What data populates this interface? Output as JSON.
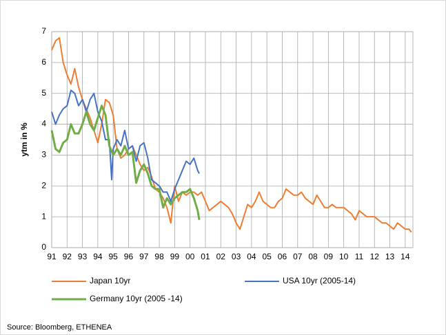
{
  "chart_data": {
    "type": "line",
    "ylabel": "ytm in %",
    "source": "Source: Bloomberg, ETHENEA",
    "xlim": [
      1991,
      2014.5
    ],
    "ylim": [
      0,
      7
    ],
    "yticks": [
      0,
      1,
      2,
      3,
      4,
      5,
      6,
      7
    ],
    "xticks": [
      {
        "value": 1991,
        "label": "91"
      },
      {
        "value": 1992,
        "label": "92"
      },
      {
        "value": 1993,
        "label": "93"
      },
      {
        "value": 1994,
        "label": "94"
      },
      {
        "value": 1995,
        "label": "95"
      },
      {
        "value": 1996,
        "label": "96"
      },
      {
        "value": 1997,
        "label": "97"
      },
      {
        "value": 1998,
        "label": "98"
      },
      {
        "value": 1999,
        "label": "99"
      },
      {
        "value": 2000,
        "label": "00"
      },
      {
        "value": 2001,
        "label": "01"
      },
      {
        "value": 2002,
        "label": "02"
      },
      {
        "value": 2003,
        "label": "03"
      },
      {
        "value": 2004,
        "label": "04"
      },
      {
        "value": 2005,
        "label": "05"
      },
      {
        "value": 2006,
        "label": "06"
      },
      {
        "value": 2007,
        "label": "07"
      },
      {
        "value": 2008,
        "label": "08"
      },
      {
        "value": 2009,
        "label": "09"
      },
      {
        "value": 2010,
        "label": "10"
      },
      {
        "value": 2011,
        "label": "11"
      },
      {
        "value": 2012,
        "label": "12"
      },
      {
        "value": 2013,
        "label": "13"
      },
      {
        "value": 2014,
        "label": "14"
      }
    ],
    "grid": true,
    "series": [
      {
        "name": "Japan 10yr",
        "color": "#ed7d31",
        "x": [
          1991,
          1991.25,
          1991.5,
          1991.75,
          1992,
          1992.25,
          1992.5,
          1992.75,
          1993,
          1993.25,
          1993.5,
          1993.75,
          1994,
          1994.25,
          1994.5,
          1994.75,
          1995,
          1995.25,
          1995.5,
          1995.75,
          1996,
          1996.25,
          1996.5,
          1996.75,
          1997,
          1997.25,
          1997.5,
          1997.75,
          1998,
          1998.25,
          1998.5,
          1998.75,
          1999,
          1999.25,
          1999.5,
          1999.75,
          2000,
          2000.25,
          2000.5,
          2000.75,
          2001,
          2001.25,
          2001.5,
          2001.75,
          2002,
          2002.25,
          2002.5,
          2002.75,
          2003,
          2003.25,
          2003.5,
          2003.75,
          2004,
          2004.25,
          2004.5,
          2004.75,
          2005,
          2005.25,
          2005.5,
          2005.75,
          2006,
          2006.25,
          2006.5,
          2006.75,
          2007,
          2007.25,
          2007.5,
          2007.75,
          2008,
          2008.25,
          2008.5,
          2008.75,
          2009,
          2009.25,
          2009.5,
          2009.75,
          2010,
          2010.25,
          2010.5,
          2010.75,
          2011,
          2011.25,
          2011.5,
          2011.75,
          2012,
          2012.25,
          2012.5,
          2012.75,
          2013,
          2013.25,
          2013.5,
          2013.75,
          2014,
          2014.25,
          2014.4
        ],
        "values": [
          6.4,
          6.7,
          6.8,
          6.0,
          5.6,
          5.3,
          5.8,
          5.2,
          4.8,
          4.5,
          4.2,
          3.8,
          3.4,
          4.0,
          4.8,
          4.7,
          4.3,
          3.2,
          2.9,
          3.0,
          3.2,
          3.3,
          3.0,
          2.7,
          2.5,
          2.6,
          2.3,
          1.9,
          1.8,
          1.6,
          1.3,
          0.8,
          2.0,
          1.5,
          1.8,
          1.7,
          1.8,
          1.8,
          1.7,
          1.8,
          1.5,
          1.2,
          1.3,
          1.4,
          1.5,
          1.4,
          1.3,
          1.1,
          0.8,
          0.6,
          1.0,
          1.4,
          1.3,
          1.5,
          1.8,
          1.5,
          1.4,
          1.3,
          1.3,
          1.5,
          1.6,
          1.9,
          1.8,
          1.7,
          1.7,
          1.8,
          1.6,
          1.5,
          1.4,
          1.7,
          1.5,
          1.3,
          1.3,
          1.4,
          1.3,
          1.3,
          1.3,
          1.2,
          1.1,
          0.9,
          1.2,
          1.1,
          1.0,
          1.0,
          1.0,
          0.9,
          0.8,
          0.8,
          0.7,
          0.6,
          0.8,
          0.7,
          0.6,
          0.6,
          0.5
        ]
      },
      {
        "name": "USA 10yr (2005-14)",
        "color": "#4472c4",
        "x": [
          1991,
          1991.25,
          1991.5,
          1991.75,
          1992,
          1992.25,
          1992.5,
          1992.75,
          1993,
          1993.25,
          1993.5,
          1993.75,
          1994,
          1994.25,
          1994.5,
          1994.75,
          1994.9,
          1995,
          1995.25,
          1995.5,
          1995.75,
          1996,
          1996.25,
          1996.5,
          1996.75,
          1997,
          1997.25,
          1997.5,
          1997.75,
          1998,
          1998.25,
          1998.5,
          1998.75,
          1999,
          1999.25,
          1999.5,
          1999.75,
          2000,
          2000.25,
          2000.5,
          2000.6
        ],
        "values": [
          4.4,
          4.0,
          4.3,
          4.5,
          4.6,
          5.1,
          5.0,
          4.6,
          4.8,
          4.4,
          4.8,
          5.0,
          4.4,
          4.1,
          3.5,
          3.5,
          2.2,
          3.2,
          3.5,
          3.3,
          3.8,
          3.2,
          3.3,
          2.8,
          3.3,
          3.4,
          2.9,
          2.2,
          2.1,
          2.0,
          1.8,
          1.8,
          1.5,
          1.9,
          2.2,
          2.5,
          2.8,
          2.7,
          2.9,
          2.5,
          2.4
        ]
      },
      {
        "name": "Germany 10yr (2005 -14)",
        "color": "#70ad47",
        "x": [
          1991,
          1991.25,
          1991.5,
          1991.75,
          1992,
          1992.25,
          1992.5,
          1992.75,
          1993,
          1993.25,
          1993.5,
          1993.75,
          1994,
          1994.25,
          1994.5,
          1994.75,
          1995,
          1995.25,
          1995.5,
          1995.75,
          1996,
          1996.25,
          1996.5,
          1996.75,
          1997,
          1997.25,
          1997.5,
          1997.75,
          1998,
          1998.25,
          1998.5,
          1998.75,
          1999,
          1999.25,
          1999.5,
          1999.75,
          2000,
          2000.25,
          2000.5,
          2000.6
        ],
        "values": [
          3.8,
          3.2,
          3.1,
          3.4,
          3.5,
          4.0,
          3.7,
          3.7,
          4.0,
          4.4,
          4.0,
          3.8,
          4.2,
          4.6,
          4.3,
          3.3,
          3.0,
          3.2,
          3.0,
          3.3,
          3.0,
          3.1,
          2.1,
          2.5,
          2.7,
          2.4,
          2.0,
          1.9,
          1.9,
          1.3,
          1.6,
          1.4,
          1.6,
          1.7,
          1.8,
          1.8,
          1.9,
          1.6,
          1.2,
          0.9
        ]
      }
    ]
  }
}
